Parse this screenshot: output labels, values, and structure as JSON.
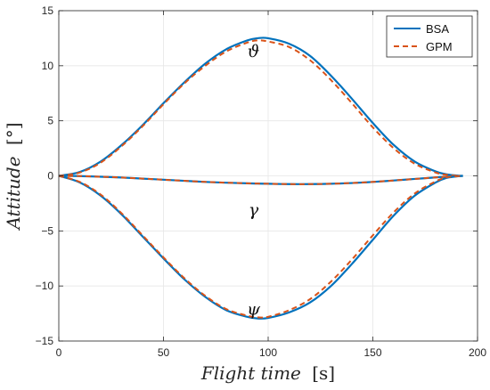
{
  "chart_data": {
    "type": "line",
    "xlabel_italic": "Flight time",
    "xlabel_unit": "[s]",
    "ylabel_italic": "Attitude",
    "ylabel_unit": "[°]",
    "xlim": [
      0,
      200
    ],
    "ylim": [
      -15,
      15
    ],
    "xticks": [
      0,
      50,
      100,
      150,
      200
    ],
    "yticks": [
      -15,
      -10,
      -5,
      0,
      5,
      10,
      15
    ],
    "grid": true,
    "legend_position": "top-right",
    "legend": [
      "BSA",
      "GPM"
    ],
    "annotations": [
      {
        "text": "ϑ",
        "x": 93,
        "y": 10.8
      },
      {
        "text": "γ",
        "x": 93,
        "y": -3.6
      },
      {
        "text": "ψ",
        "x": 93,
        "y": -12.6
      }
    ],
    "x": [
      0,
      10,
      20,
      30,
      40,
      50,
      60,
      70,
      80,
      90,
      95,
      100,
      110,
      120,
      130,
      140,
      150,
      160,
      170,
      180,
      185,
      190,
      193
    ],
    "series": [
      {
        "name": "BSA",
        "group": "theta",
        "color": "#0072BD",
        "style": "solid",
        "values": [
          0,
          0.35,
          1.3,
          2.8,
          4.6,
          6.6,
          8.5,
          10.2,
          11.5,
          12.3,
          12.5,
          12.5,
          12.0,
          10.9,
          9.1,
          7.0,
          4.8,
          2.8,
          1.3,
          0.4,
          0.15,
          0.03,
          0
        ]
      },
      {
        "name": "GPM",
        "group": "theta",
        "color": "#D95319",
        "style": "dashed",
        "values": [
          0,
          0.3,
          1.2,
          2.7,
          4.5,
          6.5,
          8.4,
          10.0,
          11.3,
          12.1,
          12.3,
          12.2,
          11.7,
          10.5,
          8.7,
          6.6,
          4.4,
          2.5,
          1.1,
          0.3,
          0.1,
          0.02,
          0
        ]
      },
      {
        "name": "BSA",
        "group": "gamma",
        "color": "#0072BD",
        "style": "solid",
        "values": [
          0,
          -0.02,
          -0.08,
          -0.15,
          -0.25,
          -0.35,
          -0.45,
          -0.55,
          -0.62,
          -0.68,
          -0.7,
          -0.72,
          -0.75,
          -0.75,
          -0.72,
          -0.65,
          -0.55,
          -0.42,
          -0.28,
          -0.14,
          -0.08,
          -0.03,
          0
        ]
      },
      {
        "name": "GPM",
        "group": "gamma",
        "color": "#D95319",
        "style": "dashed",
        "values": [
          0,
          -0.02,
          -0.08,
          -0.15,
          -0.25,
          -0.35,
          -0.45,
          -0.55,
          -0.62,
          -0.68,
          -0.7,
          -0.72,
          -0.75,
          -0.75,
          -0.72,
          -0.65,
          -0.55,
          -0.42,
          -0.28,
          -0.14,
          -0.08,
          -0.03,
          0
        ]
      },
      {
        "name": "BSA",
        "group": "psi",
        "color": "#0072BD",
        "style": "solid",
        "values": [
          0,
          -0.6,
          -1.8,
          -3.5,
          -5.5,
          -7.5,
          -9.4,
          -11.0,
          -12.2,
          -12.8,
          -12.95,
          -12.9,
          -12.4,
          -11.5,
          -10.0,
          -8.0,
          -5.8,
          -3.6,
          -1.8,
          -0.6,
          -0.2,
          -0.05,
          0
        ]
      },
      {
        "name": "GPM",
        "group": "psi",
        "color": "#D95319",
        "style": "dashed",
        "values": [
          0,
          -0.55,
          -1.7,
          -3.4,
          -5.4,
          -7.4,
          -9.3,
          -10.9,
          -12.1,
          -12.7,
          -12.85,
          -12.8,
          -12.2,
          -11.2,
          -9.6,
          -7.6,
          -5.4,
          -3.3,
          -1.6,
          -0.5,
          -0.15,
          -0.03,
          0
        ]
      }
    ]
  }
}
